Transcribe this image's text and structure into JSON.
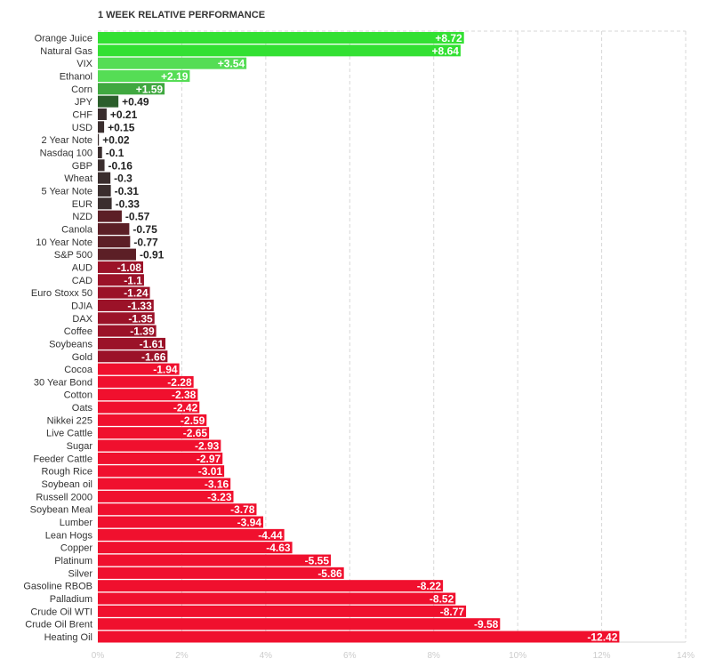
{
  "chart_data": {
    "type": "bar",
    "orientation": "horizontal",
    "title": "1 WEEK RELATIVE PERFORMANCE",
    "xlabel": "",
    "ylabel": "",
    "xlim": [
      0,
      14
    ],
    "x_ticks": [
      "0%",
      "2%",
      "4%",
      "6%",
      "8%",
      "10%",
      "12%",
      "14%"
    ],
    "grid": true,
    "bar_length": "absolute value",
    "colors": {
      "positive_strong": "#33e033",
      "positive_light": "#55dd55",
      "positive_mid": "#40a840",
      "positive_dark": "#2b5e2b",
      "neutral_dark": "#3a2e2e",
      "negative_dark": "#5c1f26",
      "negative_mid": "#9b1228",
      "negative_strong": "#f0102e"
    },
    "categories": [
      "Orange Juice",
      "Natural Gas",
      "VIX",
      "Ethanol",
      "Corn",
      "JPY",
      "CHF",
      "USD",
      "2 Year Note",
      "Nasdaq 100",
      "GBP",
      "Wheat",
      "5 Year Note",
      "EUR",
      "NZD",
      "Canola",
      "10 Year Note",
      "S&P 500",
      "AUD",
      "CAD",
      "Euro Stoxx 50",
      "DJIA",
      "DAX",
      "Coffee",
      "Soybeans",
      "Gold",
      "Cocoa",
      "30 Year Bond",
      "Cotton",
      "Oats",
      "Nikkei 225",
      "Live Cattle",
      "Sugar",
      "Feeder Cattle",
      "Rough Rice",
      "Soybean oil",
      "Russell 2000",
      "Soybean Meal",
      "Lumber",
      "Lean Hogs",
      "Copper",
      "Platinum",
      "Silver",
      "Gasoline RBOB",
      "Palladium",
      "Crude Oil WTI",
      "Crude Oil Brent",
      "Heating Oil"
    ],
    "values": [
      8.72,
      8.64,
      3.54,
      2.19,
      1.59,
      0.49,
      0.21,
      0.15,
      0.02,
      -0.1,
      -0.16,
      -0.3,
      -0.31,
      -0.33,
      -0.57,
      -0.75,
      -0.77,
      -0.91,
      -1.08,
      -1.1,
      -1.24,
      -1.33,
      -1.35,
      -1.39,
      -1.61,
      -1.66,
      -1.94,
      -2.28,
      -2.38,
      -2.42,
      -2.59,
      -2.65,
      -2.93,
      -2.97,
      -3.01,
      -3.16,
      -3.23,
      -3.78,
      -3.94,
      -4.44,
      -4.63,
      -5.55,
      -5.86,
      -8.22,
      -8.52,
      -8.77,
      -9.58,
      -12.42
    ],
    "value_labels": [
      "+8.72",
      "+8.64",
      "+3.54",
      "+2.19",
      "+1.59",
      "+0.49",
      "+0.21",
      "+0.15",
      "+0.02",
      "-0.1",
      "-0.16",
      "-0.3",
      "-0.31",
      "-0.33",
      "-0.57",
      "-0.75",
      "-0.77",
      "-0.91",
      "-1.08",
      "-1.1",
      "-1.24",
      "-1.33",
      "-1.35",
      "-1.39",
      "-1.61",
      "-1.66",
      "-1.94",
      "-2.28",
      "-2.38",
      "-2.42",
      "-2.59",
      "-2.65",
      "-2.93",
      "-2.97",
      "-3.01",
      "-3.16",
      "-3.23",
      "-3.78",
      "-3.94",
      "-4.44",
      "-4.63",
      "-5.55",
      "-5.86",
      "-8.22",
      "-8.52",
      "-8.77",
      "-9.58",
      "-12.42"
    ]
  }
}
